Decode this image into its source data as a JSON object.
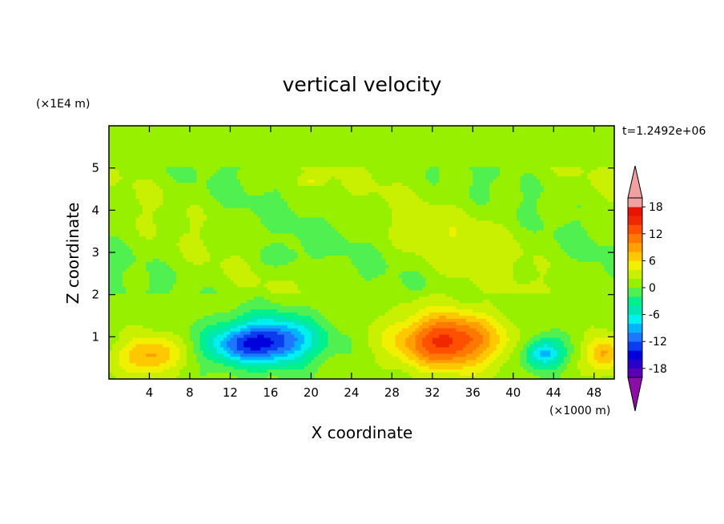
{
  "chart_data": {
    "type": "heatmap",
    "title": "vertical velocity",
    "xlabel": "X coordinate",
    "ylabel": "Z coordinate",
    "x_unit": "(×1000 m)",
    "y_unit": "(×1E4 m)",
    "time_label": "t=1.2492e+06",
    "xlim": [
      0,
      50
    ],
    "ylim": [
      0,
      6
    ],
    "x_ticks": [
      4,
      8,
      12,
      16,
      20,
      24,
      28,
      32,
      36,
      40,
      44,
      48
    ],
    "y_ticks": [
      1,
      2,
      3,
      4,
      5
    ],
    "colorbar": {
      "levels": [
        -20,
        -18,
        -16,
        -14,
        -12,
        -10,
        -8,
        -6,
        -4,
        -2,
        0,
        2,
        4,
        6,
        8,
        10,
        12,
        14,
        16,
        18,
        20
      ],
      "tick_labels": [
        "18",
        "12",
        "6",
        "0",
        "-6",
        "-12",
        "-18"
      ],
      "tick_values": [
        18,
        12,
        6,
        0,
        -6,
        -12,
        -18
      ],
      "colors": [
        "#8c0ea8",
        "#5a00b4",
        "#2a00c8",
        "#0000dc",
        "#0a3cf0",
        "#1e78ff",
        "#00b4ff",
        "#00f0f0",
        "#00e6b4",
        "#00f08c",
        "#50f050",
        "#96f000",
        "#c8f000",
        "#f0f000",
        "#ffc800",
        "#ffa000",
        "#ff7800",
        "#ff5000",
        "#f02800",
        "#e61400",
        "#f0a0a0"
      ]
    },
    "features": [
      {
        "x": 4,
        "z": 0.55,
        "value": 8,
        "sx": 3.0,
        "sz": 0.45
      },
      {
        "x": 16,
        "z": 0.9,
        "value": -15,
        "sx": 4.5,
        "sz": 0.55
      },
      {
        "x": 12,
        "z": 0.75,
        "value": -5,
        "sx": 3.0,
        "sz": 0.45
      },
      {
        "x": 33.5,
        "z": 0.9,
        "value": 14,
        "sx": 5.0,
        "sz": 0.65
      },
      {
        "x": 43,
        "z": 0.6,
        "value": -10,
        "sx": 2.0,
        "sz": 0.35
      },
      {
        "x": 49,
        "z": 0.6,
        "value": 8,
        "sx": 1.8,
        "sz": 0.4
      },
      {
        "x": 17,
        "z": 2.9,
        "value": -2,
        "sx": 2.5,
        "sz": 0.35
      },
      {
        "x": 20,
        "z": 4.7,
        "value": 3,
        "sx": 1.5,
        "sz": 0.15
      },
      {
        "x": 35,
        "z": 3.2,
        "value": 2,
        "sx": 6.0,
        "sz": 0.8
      }
    ]
  }
}
